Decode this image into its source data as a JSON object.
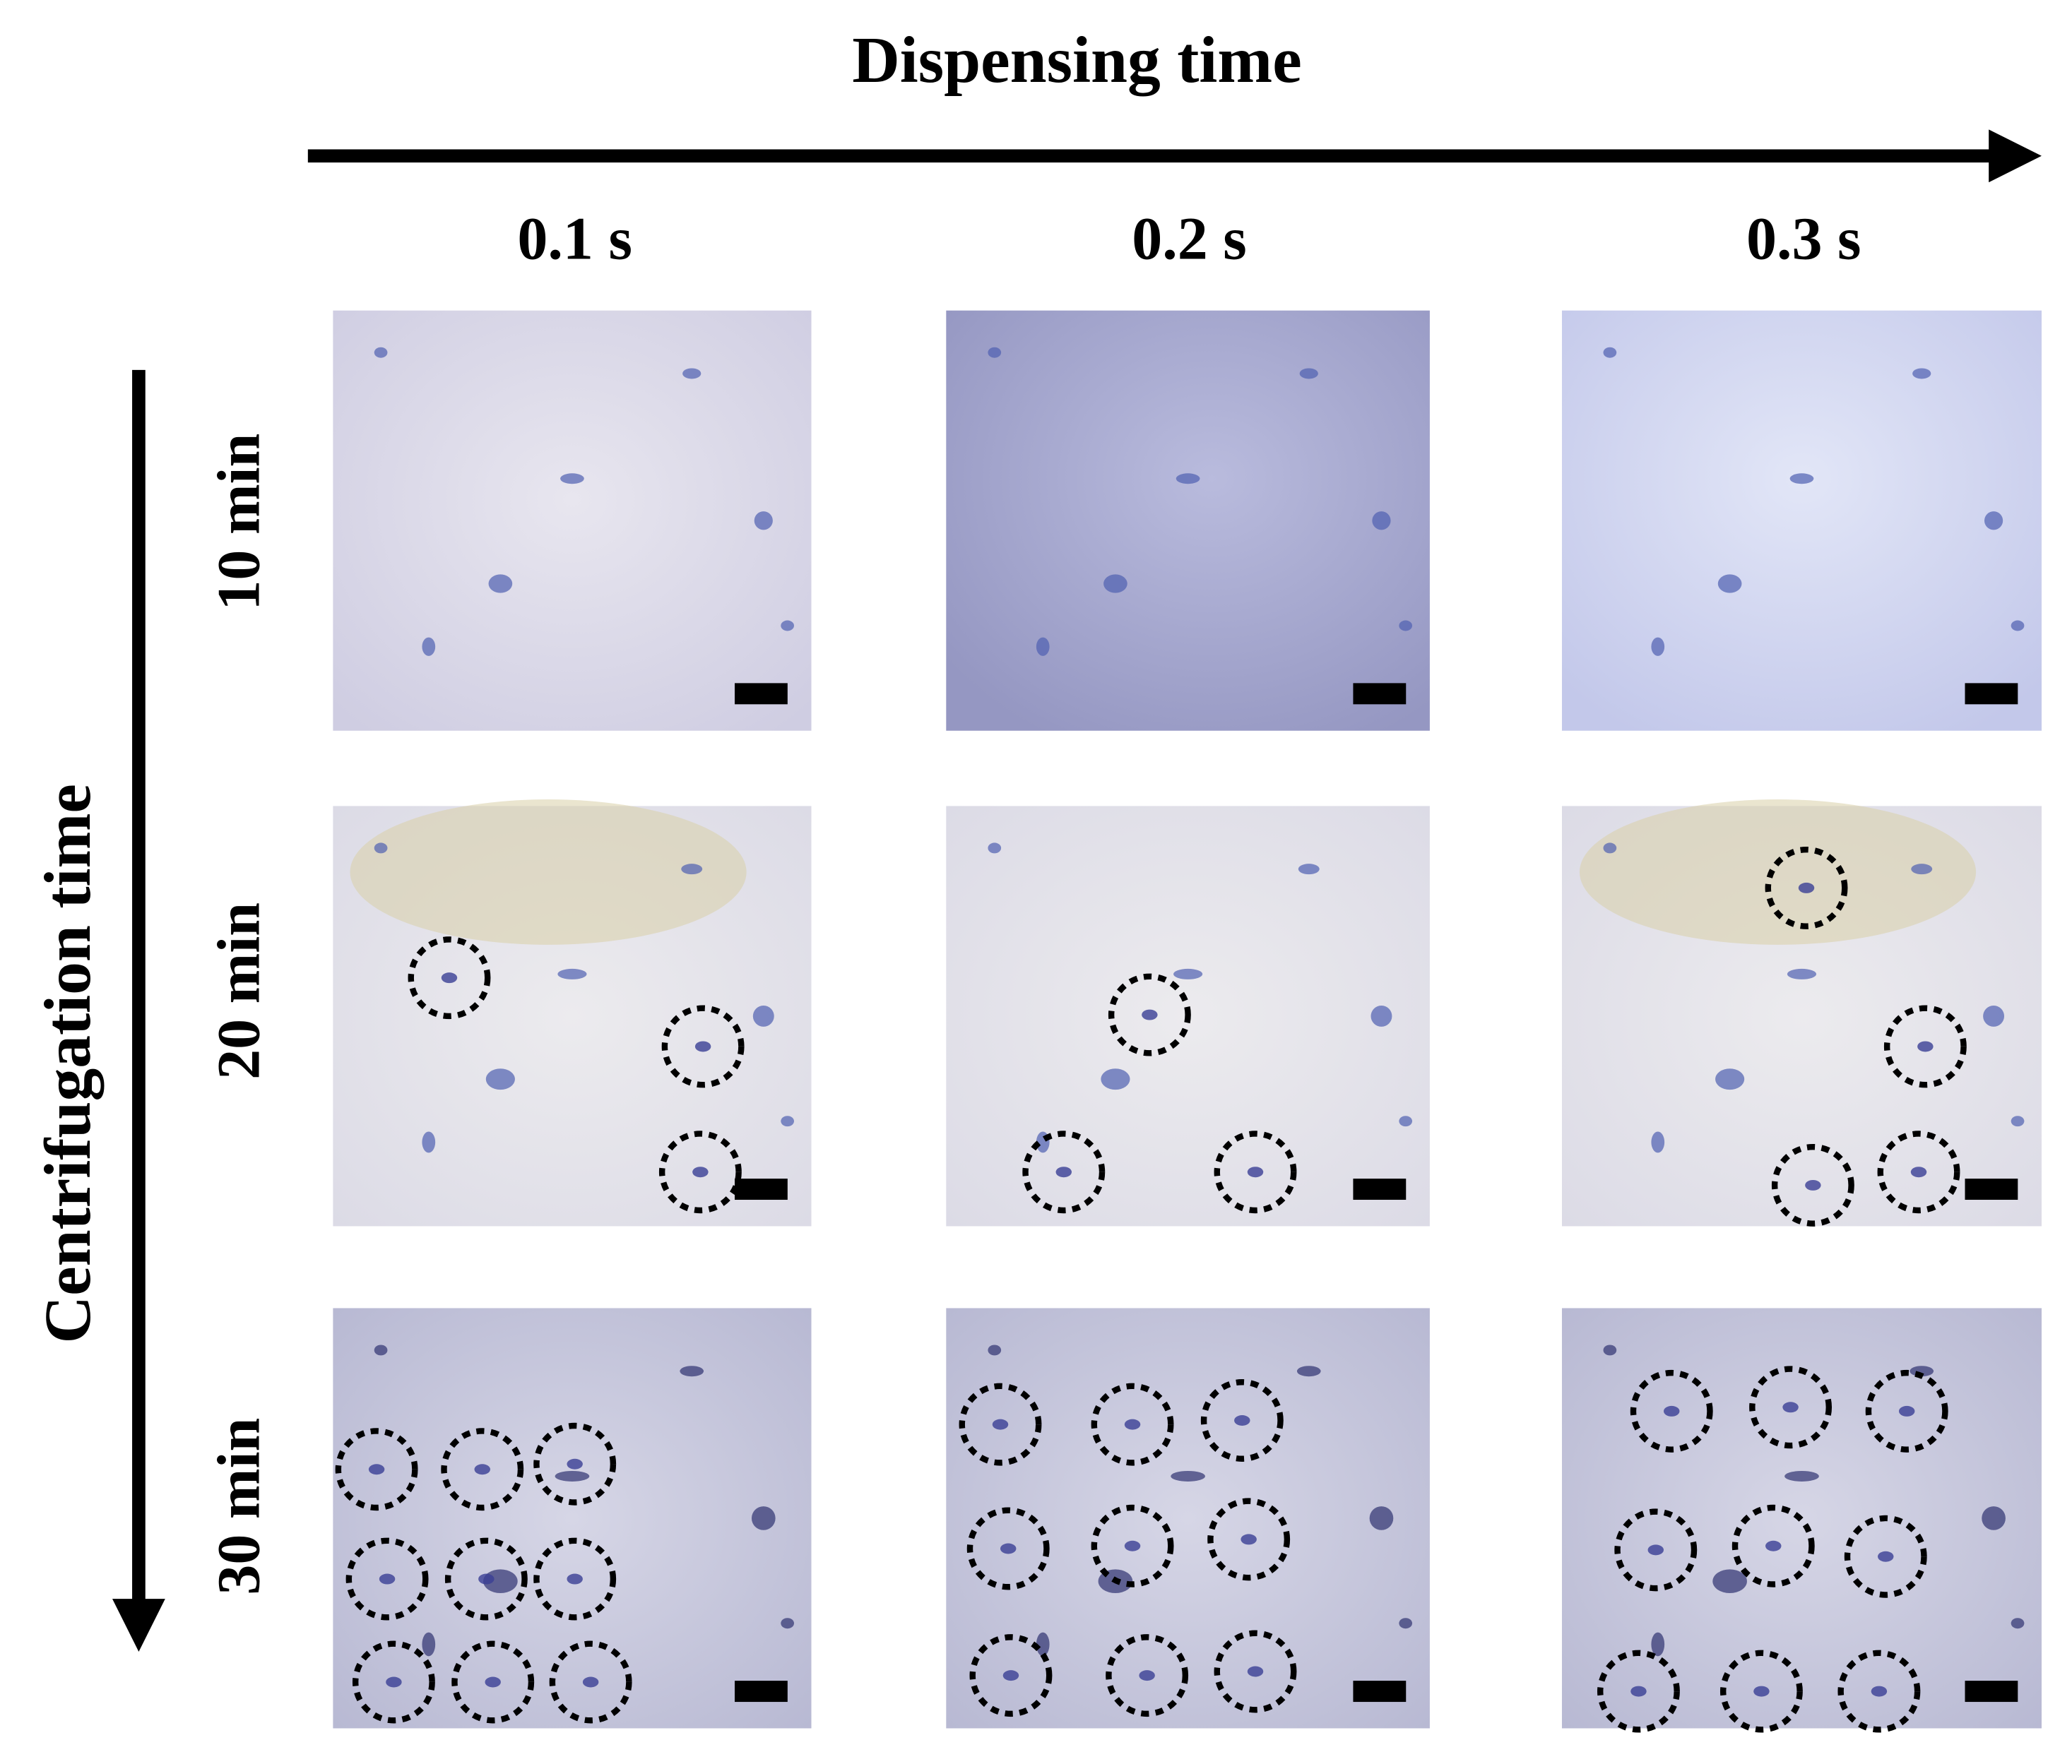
{
  "header": {
    "title": "Dispensing time"
  },
  "columns": [
    "0.1 s",
    "0.2 s",
    "0.3 s"
  ],
  "row_axis": {
    "title": "Centrifugation time"
  },
  "rows": [
    "10 min",
    "20 min",
    "30 min"
  ]
}
